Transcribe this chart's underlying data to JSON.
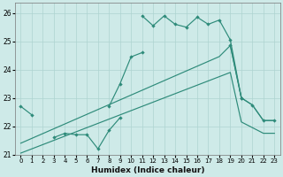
{
  "x_all": [
    0,
    1,
    2,
    3,
    4,
    5,
    6,
    7,
    8,
    9,
    10,
    11,
    12,
    13,
    14,
    15,
    16,
    17,
    18,
    19,
    20,
    21,
    22,
    23
  ],
  "line_upper_zigzag": [
    22.7,
    22.4,
    null,
    null,
    null,
    null,
    null,
    null,
    null,
    null,
    null,
    25.9,
    25.55,
    25.9,
    25.6,
    25.5,
    25.85,
    25.6,
    25.75,
    25.05,
    23.0,
    null,
    null,
    null
  ],
  "line_mid_zigzag": [
    null,
    null,
    null,
    null,
    null,
    null,
    null,
    null,
    22.7,
    23.5,
    24.45,
    24.6,
    null,
    null,
    null,
    null,
    null,
    null,
    null,
    24.85,
    23.0,
    22.75,
    22.2,
    22.2
  ],
  "line_lower_zigzag": [
    null,
    null,
    null,
    21.6,
    21.75,
    21.7,
    21.7,
    21.2,
    21.85,
    22.3,
    null,
    null,
    null,
    null,
    null,
    null,
    null,
    null,
    null,
    null,
    null,
    null,
    null,
    null
  ],
  "line_straight_upper": [
    21.4,
    21.57,
    21.74,
    21.91,
    22.08,
    22.25,
    22.42,
    22.59,
    22.76,
    22.93,
    23.1,
    23.27,
    23.44,
    23.61,
    23.78,
    23.95,
    24.12,
    24.29,
    24.46,
    24.85,
    23.0,
    22.75,
    22.2,
    22.2
  ],
  "line_straight_lower": [
    21.05,
    21.2,
    21.35,
    21.5,
    21.65,
    21.8,
    21.95,
    22.1,
    22.25,
    22.4,
    22.55,
    22.7,
    22.85,
    23.0,
    23.15,
    23.3,
    23.45,
    23.6,
    23.75,
    23.9,
    22.15,
    21.95,
    21.75,
    21.75
  ],
  "color": "#2e8b7a",
  "bg_color": "#ceeae8",
  "grid_color": "#aed4d0",
  "xlabel": "Humidex (Indice chaleur)",
  "xlim": [
    -0.5,
    23.5
  ],
  "ylim": [
    21.0,
    26.35
  ],
  "yticks": [
    21,
    22,
    23,
    24,
    25,
    26
  ],
  "xticks": [
    0,
    1,
    2,
    3,
    4,
    5,
    6,
    7,
    8,
    9,
    10,
    11,
    12,
    13,
    14,
    15,
    16,
    17,
    18,
    19,
    20,
    21,
    22,
    23
  ]
}
